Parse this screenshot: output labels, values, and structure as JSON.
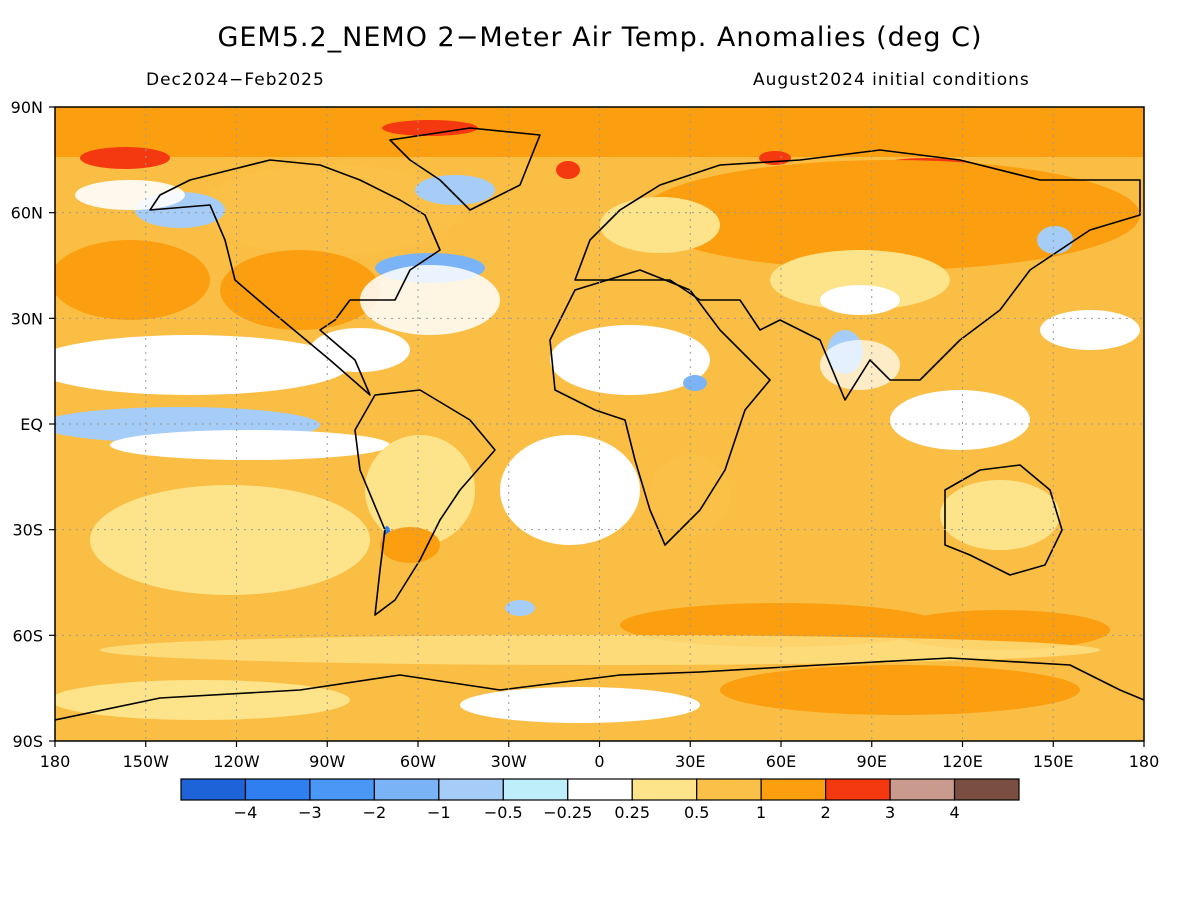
{
  "header": {
    "title": "GEM5.2_NEMO 2−Meter Air Temp. Anomalies (deg C)",
    "period": "Dec2024−Feb2025",
    "initial_conditions": "August2024 initial conditions"
  },
  "axes": {
    "lat_labels": [
      "90N",
      "60N",
      "30N",
      "EQ",
      "30S",
      "60S",
      "90S"
    ],
    "lon_labels": [
      "180",
      "150W",
      "120W",
      "90W",
      "60W",
      "30W",
      "0",
      "30E",
      "60E",
      "90E",
      "120E",
      "150E",
      "180"
    ]
  },
  "colorbar": {
    "labels": [
      "−4",
      "−3",
      "−2",
      "−1",
      "−0.5",
      "−0.25",
      "0.25",
      "0.5",
      "1",
      "2",
      "3",
      "4"
    ],
    "colors": [
      "#1e64d8",
      "#2f7ff0",
      "#4a97f5",
      "#7ab4f6",
      "#a5cdf8",
      "#bdeefa",
      "#ffffff",
      "#fde48a",
      "#fbc047",
      "#fb9f10",
      "#f4380f",
      "#c99a8e",
      "#7a4f42"
    ]
  },
  "palette": {
    "ocean_base": "#fbbe45",
    "frame": "#000000",
    "grid": "#9a9a9a"
  }
}
